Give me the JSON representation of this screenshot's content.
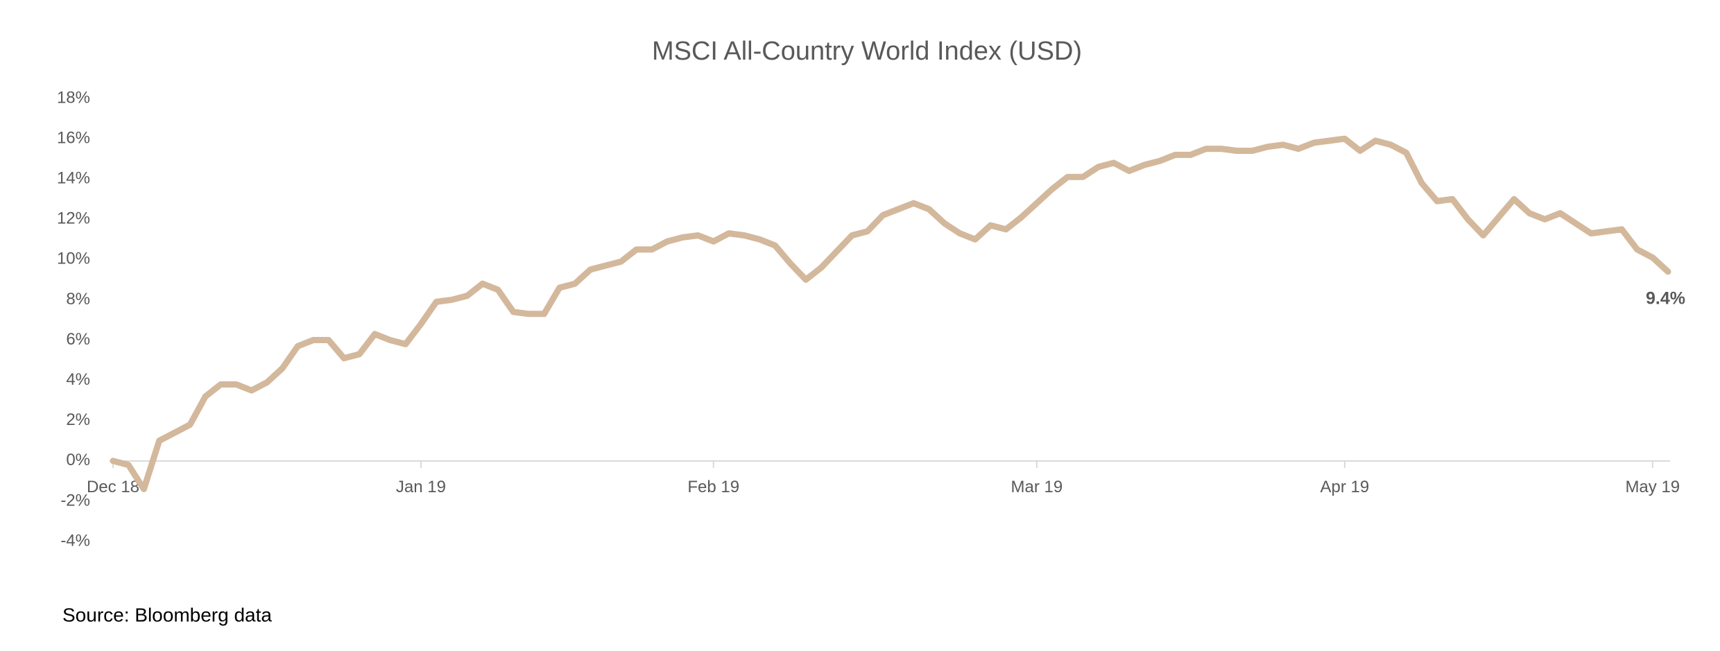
{
  "chart_data": {
    "type": "line",
    "title": "MSCI All-Country World Index (USD)",
    "categories": [
      "Dec 18",
      null,
      null,
      null,
      null,
      null,
      null,
      null,
      null,
      null,
      null,
      null,
      null,
      null,
      null,
      null,
      null,
      null,
      null,
      null,
      "Jan 19",
      null,
      null,
      null,
      null,
      null,
      null,
      null,
      null,
      null,
      null,
      null,
      null,
      null,
      null,
      null,
      null,
      null,
      null,
      "Feb 19",
      null,
      null,
      null,
      null,
      null,
      null,
      null,
      null,
      null,
      null,
      null,
      null,
      null,
      null,
      null,
      null,
      null,
      null,
      null,
      null,
      "Mar 19",
      null,
      null,
      null,
      null,
      null,
      null,
      null,
      null,
      null,
      null,
      null,
      null,
      null,
      null,
      null,
      null,
      null,
      null,
      null,
      "Apr 19",
      null,
      null,
      null,
      null,
      null,
      null,
      null,
      null,
      null,
      null,
      null,
      null,
      null,
      null,
      null,
      null,
      null,
      null,
      null,
      "May 19",
      null
    ],
    "values": [
      0,
      -0.2,
      -1.4,
      1.0,
      1.4,
      1.8,
      3.2,
      3.8,
      3.8,
      3.5,
      3.9,
      4.6,
      5.7,
      6.0,
      6.0,
      5.1,
      5.3,
      6.3,
      6.0,
      5.8,
      6.8,
      7.9,
      8.0,
      8.2,
      8.8,
      8.5,
      7.4,
      7.3,
      7.3,
      8.6,
      8.8,
      9.5,
      9.7,
      9.9,
      10.5,
      10.5,
      10.9,
      11.1,
      11.2,
      10.9,
      11.3,
      11.2,
      11.0,
      10.7,
      9.8,
      9.0,
      9.6,
      10.4,
      11.2,
      11.4,
      12.2,
      12.5,
      12.8,
      12.5,
      11.8,
      11.3,
      11.0,
      11.7,
      11.5,
      12.1,
      12.8,
      13.5,
      14.1,
      14.1,
      14.6,
      14.8,
      14.4,
      14.7,
      14.9,
      15.2,
      15.2,
      15.5,
      15.5,
      15.4,
      15.4,
      15.6,
      15.7,
      15.5,
      15.8,
      15.9,
      16.0,
      15.4,
      15.9,
      15.7,
      15.3,
      13.8,
      12.9,
      13.0,
      12.0,
      11.2,
      12.1,
      13.0,
      12.3,
      12.0,
      12.3,
      11.8,
      11.3,
      11.4,
      11.5,
      10.5,
      10.1,
      9.4
    ],
    "value_labels": [
      null,
      null,
      null,
      null,
      null,
      null,
      null,
      null,
      null,
      null,
      null,
      null,
      null,
      null,
      null,
      null,
      null,
      null,
      null,
      null,
      null,
      null,
      null,
      null,
      null,
      null,
      null,
      null,
      null,
      null,
      null,
      null,
      null,
      null,
      null,
      null,
      null,
      null,
      null,
      null,
      null,
      null,
      null,
      null,
      null,
      null,
      null,
      null,
      null,
      null,
      null,
      null,
      null,
      null,
      null,
      null,
      null,
      null,
      null,
      null,
      null,
      null,
      null,
      null,
      null,
      null,
      null,
      null,
      null,
      null,
      null,
      null,
      null,
      null,
      null,
      null,
      null,
      null,
      null,
      null,
      null,
      null,
      null,
      null,
      null,
      null,
      null,
      null,
      null,
      null,
      null,
      null,
      null,
      null,
      null,
      null,
      null,
      null,
      null,
      null,
      null,
      "9.4%"
    ],
    "color": "#d3b89c",
    "ylim": [
      -4,
      18
    ],
    "yticks": [
      {
        "value": -4,
        "label": "-4%"
      },
      {
        "value": -2,
        "label": "-2%"
      },
      {
        "value": 0,
        "label": "0%"
      },
      {
        "value": 2,
        "label": "2%"
      },
      {
        "value": 4,
        "label": "4%"
      },
      {
        "value": 6,
        "label": "6%"
      },
      {
        "value": 8,
        "label": "8%"
      },
      {
        "value": 10,
        "label": "10%"
      },
      {
        "value": 12,
        "label": "12%"
      },
      {
        "value": 14,
        "label": "14%"
      },
      {
        "value": 16,
        "label": "16%"
      },
      {
        "value": 18,
        "label": "18%"
      }
    ],
    "source": "Source: Bloomberg data"
  }
}
